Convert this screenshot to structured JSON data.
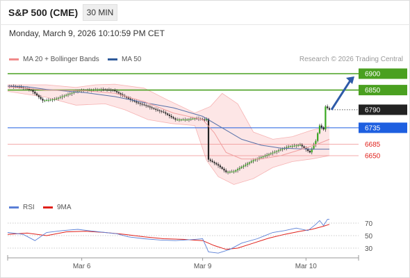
{
  "header": {
    "title": "S&P 500 (CME)",
    "timeframe": "30 MIN",
    "datetime": "Monday, March 9, 2026 10:10:59 PM CET"
  },
  "legend": {
    "ma20": {
      "label": "MA 20 + Bollinger Bands",
      "color": "#f08a8a"
    },
    "ma50": {
      "label": "MA 50",
      "color": "#2e5a9a"
    },
    "research": "Research © 2026 Trading Central",
    "rsi": {
      "label": "RSI",
      "color": "#5a7fd6"
    },
    "rsi_ma": {
      "label": "9MA",
      "color": "#e0201a"
    }
  },
  "levels": [
    {
      "value": 6900,
      "label": "6900",
      "style": "target",
      "color": "#4aa020"
    },
    {
      "value": 6850,
      "label": "6850",
      "style": "target",
      "color": "#4aa020"
    },
    {
      "value": 6790,
      "label": "6790",
      "style": "last",
      "color": "#222222"
    },
    {
      "value": 6735,
      "label": "6735",
      "style": "pivot",
      "color": "#1e5fe0"
    },
    {
      "value": 6685,
      "label": "6685",
      "style": "support",
      "color": "#e0201a"
    },
    {
      "value": 6650,
      "label": "6650",
      "style": "support",
      "color": "#e0201a"
    }
  ],
  "chart_data": {
    "type": "line",
    "title": "S&P 500 (CME)",
    "ylim": [
      6560,
      6920
    ],
    "x_tick_labels": [
      "Mar 6",
      "Mar 9",
      "Mar 10"
    ],
    "price_path": [
      [
        0,
        6862
      ],
      [
        6,
        6860
      ],
      [
        12,
        6850
      ],
      [
        18,
        6818
      ],
      [
        24,
        6822
      ],
      [
        30,
        6835
      ],
      [
        36,
        6848
      ],
      [
        42,
        6850
      ],
      [
        48,
        6852
      ],
      [
        54,
        6850
      ],
      [
        60,
        6830
      ],
      [
        66,
        6812
      ],
      [
        72,
        6800
      ],
      [
        76,
        6790
      ],
      [
        80,
        6782
      ],
      [
        86,
        6760
      ],
      [
        92,
        6760
      ],
      [
        96,
        6764
      ],
      [
        99,
        6762
      ],
      [
        101,
        6758
      ],
      [
        102,
        6762
      ],
      [
        103,
        6638
      ],
      [
        108,
        6620
      ],
      [
        112,
        6600
      ],
      [
        116,
        6602
      ],
      [
        120,
        6616
      ],
      [
        126,
        6636
      ],
      [
        132,
        6650
      ],
      [
        138,
        6664
      ],
      [
        144,
        6678
      ],
      [
        150,
        6683
      ],
      [
        155,
        6660
      ],
      [
        158,
        6695
      ],
      [
        160,
        6742
      ],
      [
        162,
        6730
      ],
      [
        163,
        6800
      ],
      [
        164,
        6795
      ],
      [
        165,
        6790
      ]
    ],
    "ma50_path": [
      [
        0,
        6862
      ],
      [
        10,
        6860
      ],
      [
        20,
        6852
      ],
      [
        40,
        6842
      ],
      [
        55,
        6830
      ],
      [
        70,
        6812
      ],
      [
        85,
        6796
      ],
      [
        100,
        6770
      ],
      [
        110,
        6735
      ],
      [
        120,
        6700
      ],
      [
        130,
        6682
      ],
      [
        140,
        6673
      ],
      [
        150,
        6671
      ],
      [
        158,
        6670
      ],
      [
        165,
        6670
      ]
    ],
    "ma20_path": [
      [
        0,
        6860
      ],
      [
        20,
        6850
      ],
      [
        40,
        6848
      ],
      [
        55,
        6840
      ],
      [
        70,
        6815
      ],
      [
        85,
        6780
      ],
      [
        100,
        6760
      ],
      [
        106,
        6720
      ],
      [
        112,
        6660
      ],
      [
        120,
        6640
      ],
      [
        130,
        6640
      ],
      [
        140,
        6650
      ],
      [
        150,
        6668
      ],
      [
        160,
        6688
      ],
      [
        165,
        6700
      ]
    ],
    "bb_upper_path": [
      [
        0,
        6866
      ],
      [
        20,
        6866
      ],
      [
        35,
        6858
      ],
      [
        45,
        6866
      ],
      [
        55,
        6868
      ],
      [
        70,
        6856
      ],
      [
        82,
        6820
      ],
      [
        96,
        6780
      ],
      [
        104,
        6800
      ],
      [
        110,
        6840
      ],
      [
        118,
        6808
      ],
      [
        126,
        6722
      ],
      [
        136,
        6700
      ],
      [
        146,
        6708
      ],
      [
        156,
        6728
      ],
      [
        165,
        6740
      ]
    ],
    "bb_lower_path": [
      [
        0,
        6846
      ],
      [
        20,
        6828
      ],
      [
        35,
        6804
      ],
      [
        50,
        6808
      ],
      [
        60,
        6790
      ],
      [
        72,
        6760
      ],
      [
        84,
        6748
      ],
      [
        96,
        6742
      ],
      [
        102,
        6636
      ],
      [
        108,
        6586
      ],
      [
        116,
        6562
      ],
      [
        126,
        6580
      ],
      [
        136,
        6614
      ],
      [
        146,
        6632
      ],
      [
        156,
        6640
      ],
      [
        165,
        6650
      ]
    ],
    "rsi_path": [
      [
        0,
        55
      ],
      [
        8,
        52
      ],
      [
        14,
        42
      ],
      [
        20,
        55
      ],
      [
        28,
        58
      ],
      [
        36,
        60
      ],
      [
        44,
        57
      ],
      [
        50,
        55
      ],
      [
        56,
        53
      ],
      [
        62,
        48
      ],
      [
        70,
        45
      ],
      [
        78,
        43
      ],
      [
        86,
        42
      ],
      [
        96,
        44
      ],
      [
        100,
        45
      ],
      [
        103,
        24
      ],
      [
        108,
        22
      ],
      [
        114,
        28
      ],
      [
        120,
        38
      ],
      [
        128,
        45
      ],
      [
        136,
        55
      ],
      [
        142,
        58
      ],
      [
        148,
        62
      ],
      [
        154,
        58
      ],
      [
        158,
        68
      ],
      [
        160,
        74
      ],
      [
        162,
        66
      ],
      [
        164,
        76
      ],
      [
        165,
        76
      ]
    ],
    "rsi_ma_path": [
      [
        0,
        52
      ],
      [
        10,
        54
      ],
      [
        20,
        50
      ],
      [
        30,
        56
      ],
      [
        40,
        57
      ],
      [
        50,
        55
      ],
      [
        60,
        52
      ],
      [
        70,
        48
      ],
      [
        80,
        45
      ],
      [
        90,
        44
      ],
      [
        100,
        42
      ],
      [
        106,
        34
      ],
      [
        112,
        28
      ],
      [
        118,
        30
      ],
      [
        126,
        38
      ],
      [
        134,
        46
      ],
      [
        142,
        52
      ],
      [
        150,
        57
      ],
      [
        156,
        60
      ],
      [
        162,
        65
      ],
      [
        165,
        68
      ]
    ],
    "rsi_ylim": [
      20,
      80
    ],
    "rsi_levels": [
      70,
      50,
      30
    ],
    "arrow": {
      "from": 6790,
      "to": 6900
    }
  }
}
